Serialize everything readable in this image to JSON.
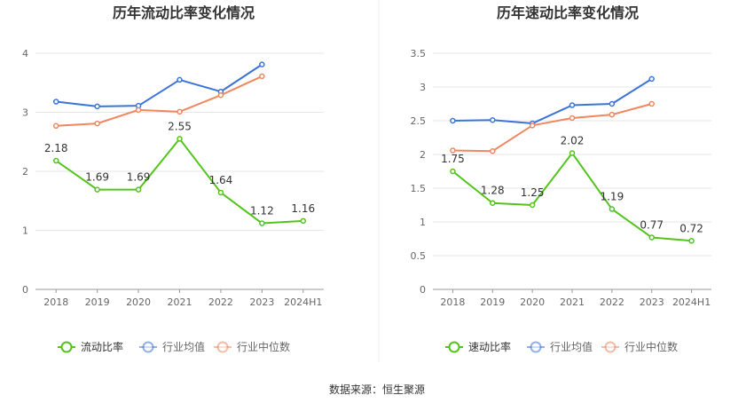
{
  "source_label": "数据来源：恒生聚源",
  "colors": {
    "main": "#52c41a",
    "avg": "#3b74d8",
    "median": "#f0875e",
    "grid": "#e6e6e6",
    "axis": "#999999"
  },
  "chart_data": [
    {
      "type": "line",
      "title": "历年流动比率变化情况",
      "categories": [
        "2018",
        "2019",
        "2020",
        "2021",
        "2022",
        "2023",
        "2024H1"
      ],
      "ylim": [
        0,
        4
      ],
      "yticks": [
        "0",
        "1",
        "2",
        "3",
        "4"
      ],
      "grid": true,
      "legend_position": "bottom",
      "series": [
        {
          "name": "流动比率",
          "values": [
            2.18,
            1.69,
            1.69,
            2.55,
            1.64,
            1.12,
            1.16
          ],
          "labels": [
            "2.18",
            "1.69",
            "1.69",
            "2.55",
            "1.64",
            "1.12",
            "1.16"
          ]
        },
        {
          "name": "行业均值",
          "values": [
            3.18,
            3.1,
            3.11,
            3.55,
            3.35,
            3.81,
            null
          ]
        },
        {
          "name": "行业中位数",
          "values": [
            2.77,
            2.81,
            3.04,
            3.01,
            3.29,
            3.61,
            null
          ]
        }
      ]
    },
    {
      "type": "line",
      "title": "历年速动比率变化情况",
      "categories": [
        "2018",
        "2019",
        "2020",
        "2021",
        "2022",
        "2023",
        "2024H1"
      ],
      "ylim": [
        0,
        3.5
      ],
      "yticks": [
        "0",
        "0.5",
        "1",
        "1.5",
        "2",
        "2.5",
        "3",
        "3.5"
      ],
      "grid": true,
      "legend_position": "bottom",
      "series": [
        {
          "name": "速动比率",
          "values": [
            1.75,
            1.28,
            1.25,
            2.02,
            1.19,
            0.77,
            0.72
          ],
          "labels": [
            "1.75",
            "1.28",
            "1.25",
            "2.02",
            "1.19",
            "0.77",
            "0.72"
          ]
        },
        {
          "name": "行业均值",
          "values": [
            2.5,
            2.51,
            2.46,
            2.73,
            2.75,
            3.12,
            null
          ]
        },
        {
          "name": "行业中位数",
          "values": [
            2.06,
            2.05,
            2.43,
            2.54,
            2.59,
            2.75,
            null
          ]
        }
      ]
    }
  ]
}
